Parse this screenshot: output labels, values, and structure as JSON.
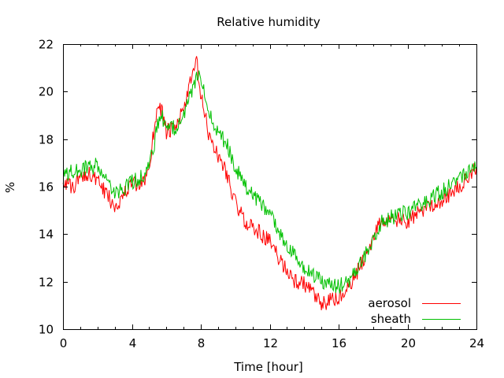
{
  "chart_data": {
    "type": "line",
    "title": "Relative humidity",
    "xlabel": "Time [hour]",
    "ylabel": "%",
    "xlim": [
      0,
      24
    ],
    "ylim": [
      10,
      22
    ],
    "xticks": [
      "0",
      "4",
      "8",
      "12",
      "16",
      "20",
      "24"
    ],
    "yticks": [
      "10",
      "12",
      "14",
      "16",
      "18",
      "20",
      "22"
    ],
    "grid": false,
    "legend_position": "bottom-right",
    "series": [
      {
        "name": "aerosol",
        "color": "#ff0000",
        "x": [
          0,
          0.5,
          1,
          1.5,
          2,
          2.5,
          3,
          3.5,
          4,
          4.5,
          5,
          5.25,
          5.5,
          5.75,
          6,
          6.5,
          7,
          7.5,
          7.75,
          8,
          8.5,
          9,
          9.5,
          10,
          10.5,
          11,
          11.5,
          12,
          12.5,
          13,
          13.5,
          14,
          14.5,
          15,
          15.5,
          16,
          16.5,
          17,
          17.5,
          18,
          18.5,
          19,
          19.5,
          20,
          20.5,
          21,
          21.5,
          22,
          22.5,
          23,
          23.5,
          24
        ],
        "y": [
          16.3,
          15.9,
          16.4,
          16.6,
          16.2,
          15.7,
          15.2,
          15.6,
          16.2,
          15.9,
          16.8,
          18.2,
          19.5,
          19.2,
          18.3,
          18.4,
          19.3,
          20.6,
          21.3,
          19.8,
          18.1,
          17.3,
          16.6,
          15.3,
          14.6,
          14.3,
          14.0,
          13.7,
          13.0,
          12.5,
          12.0,
          11.9,
          11.5,
          11.0,
          11.2,
          11.3,
          11.6,
          12.3,
          13.0,
          13.9,
          14.6,
          14.5,
          14.6,
          14.5,
          14.8,
          15.1,
          15.3,
          15.4,
          15.7,
          16.0,
          16.3,
          16.9
        ]
      },
      {
        "name": "sheath",
        "color": "#00c000",
        "x": [
          0,
          0.5,
          1,
          1.5,
          2,
          2.5,
          3,
          3.5,
          4,
          4.5,
          5,
          5.25,
          5.5,
          5.75,
          6,
          6.5,
          7,
          7.5,
          7.75,
          8,
          8.5,
          9,
          9.5,
          10,
          10.5,
          11,
          11.5,
          12,
          12.5,
          13,
          13.5,
          14,
          14.5,
          15,
          15.5,
          16,
          16.5,
          17,
          17.5,
          18,
          18.5,
          19,
          19.5,
          20,
          20.5,
          21,
          21.5,
          22,
          22.5,
          23,
          23.5,
          24
        ],
        "y": [
          16.5,
          16.6,
          16.7,
          16.8,
          16.9,
          16.2,
          15.7,
          15.9,
          16.2,
          16.4,
          16.8,
          17.6,
          18.6,
          18.9,
          18.6,
          18.5,
          19.0,
          20.0,
          20.7,
          20.6,
          19.2,
          18.3,
          17.8,
          16.8,
          16.1,
          15.7,
          15.3,
          14.8,
          14.1,
          13.5,
          13.0,
          12.6,
          12.3,
          12.0,
          11.9,
          11.8,
          12.0,
          12.4,
          13.1,
          13.8,
          14.5,
          14.7,
          14.8,
          14.9,
          15.1,
          15.3,
          15.6,
          15.8,
          16.1,
          16.4,
          16.7,
          17.0
        ]
      }
    ]
  }
}
